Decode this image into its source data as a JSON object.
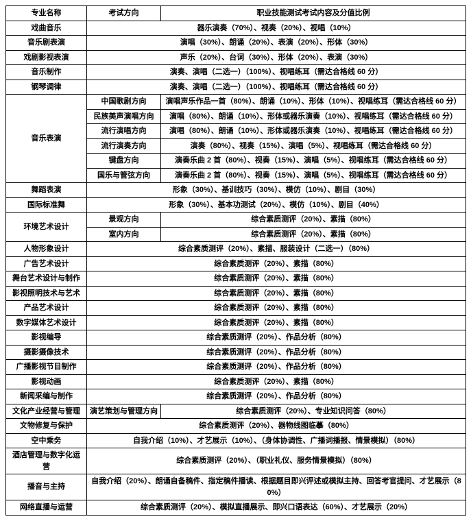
{
  "header": {
    "col1": "专业名称",
    "col2": "考试方向",
    "col3": "职业技能测试考试内容及分值比例"
  },
  "rows": [
    {
      "major": "戏曲音乐",
      "dir": "",
      "content": "器乐演奏（70%）、视奏（20%）、视唱（10%）"
    },
    {
      "major": "音乐剧表演",
      "dir": "",
      "content": "演唱（30%）、朗诵（20%）、表演（20%）、形体（30%）"
    },
    {
      "major": "戏剧影视表演",
      "dir": "",
      "content": "声乐（20%）、台词（30%）、形体（20%）、表演（30%）"
    },
    {
      "major": "音乐制作",
      "dir": "",
      "content": "演奏、演唱（二选一）（100%）、视唱练耳（需达合格线 60 分）"
    },
    {
      "major": "钢琴调律",
      "dir": "",
      "content": "演奏、演唱（二选一）（100%）、视唱练耳（需达合格线 60 分）"
    },
    {
      "major": "音乐表演",
      "span": 6,
      "subs": [
        {
          "dir": "中国歌剧方向",
          "content": "演唱声乐作品一首（80%）、朗诵（10%）、形体（10%）、视唱练耳（需达合格线 60 分）"
        },
        {
          "dir": "民族美声演唱方向",
          "content": "演唱（80%）、朗诵（10%）、形体或器乐演奏（10%）、视唱练耳（需达合格线 60 分）"
        },
        {
          "dir": "流行演唱方向",
          "content": "演唱（80%）、朗诵（10%）、形体或器乐演奏（10%）、视唱练耳（需达合格线 60 分）"
        },
        {
          "dir": "流行演奏方向",
          "content": "演奏（80%）、视奏（15%）、演唱（5%）、视唱练耳（需达合格线 60 分）"
        },
        {
          "dir": "键盘方向",
          "content": "演奏乐曲 2 首（80%）、视奏（15%）、演唱（5%）、视唱练耳（需达合格线 60 分）"
        },
        {
          "dir": "国乐与管弦方向",
          "content": "演奏乐曲 2 首（80%）、视奏（15%）、演唱（5%）、视唱练耳（需达合格线 60 分）"
        }
      ]
    },
    {
      "major": "舞蹈表演",
      "dir": "",
      "content": "形象（30%）、基训技巧（30%）、模仿（10%）、剧目（30%）"
    },
    {
      "major": "国际标准舞",
      "dir": "",
      "content": "形象（30%）、基本功测试（20%）、模仿（10%）、剧目（40%）"
    },
    {
      "major": "环境艺术设计",
      "span": 2,
      "subs": [
        {
          "dir": "景观方向",
          "content": "综合素质测评（20%）、素描（80%）"
        },
        {
          "dir": "室内方向",
          "content": "综合素质测评（20%）、素描（80%）"
        }
      ]
    },
    {
      "major": "人物形象设计",
      "dir": "",
      "content": "综合素质测评（20%）、素描、服装设计（二选一）（80%）"
    },
    {
      "major": "广告艺术设计",
      "dir": "",
      "content": "综合素质测评（20%）、素描（80%）"
    },
    {
      "major": "舞台艺术设计与制作",
      "dir": "",
      "content": "综合素质测评（20%）、素描（80%）"
    },
    {
      "major": "影视照明技术与艺术",
      "dir": "",
      "content": "综合素质测评（20%）、素描（80%）"
    },
    {
      "major": "产品艺术设计",
      "dir": "",
      "content": "综合素质测评（20%）、素描（80%）"
    },
    {
      "major": "数字媒体艺术设计",
      "dir": "",
      "content": "综合素质测评（20%）、素描（80%）"
    },
    {
      "major": "影视编导",
      "dir": "",
      "content": "综合素质测评（20%）、作品分析（80%）"
    },
    {
      "major": "摄影摄像技术",
      "dir": "",
      "content": "综合素质测评（20%）、作品分析（80%）"
    },
    {
      "major": "广播影视节目制作",
      "dir": "",
      "content": "综合素质测评（20%）、作品分析（80%）"
    },
    {
      "major": "影视动画",
      "dir": "",
      "content": "综合素质测评（20%）、素描（80%）"
    },
    {
      "major": "新闻采编与制作",
      "dir": "",
      "content": "综合素质测评（20%）、作品分析（80%）"
    },
    {
      "major": "文化产业经营与管理",
      "dir": "演艺策划与管理方向",
      "content": "综合素质测评（20%）、专业知识问答（80%）"
    },
    {
      "major": "文物修复与保护",
      "dir": "",
      "content": "综合素质测评（20%）、器物线图临摹（80%）"
    },
    {
      "major": "空中乘务",
      "dir": "",
      "content": "自我介绍（10%）、才艺展示（10%）、（身体协调性、广播词播报、情景模拟）（80%）"
    },
    {
      "major": "酒店管理与数字化运营",
      "dir": "",
      "content": "综合素质测评（20%）、（职业礼仪、服务情景模拟）（80%）"
    },
    {
      "major": "播音与主持",
      "dir": "",
      "content": "自我介绍（20%）、朗诵自备稿件、指定稿件播读、根据题目即兴评述或模拟主持、回答考官提问、才艺展示（80%）"
    },
    {
      "major": "网络直播与运营",
      "dir": "",
      "content": "综合素质测评（20%）、模拟直播展示、即兴口语表达（60%）、才艺展示（20%）"
    }
  ]
}
